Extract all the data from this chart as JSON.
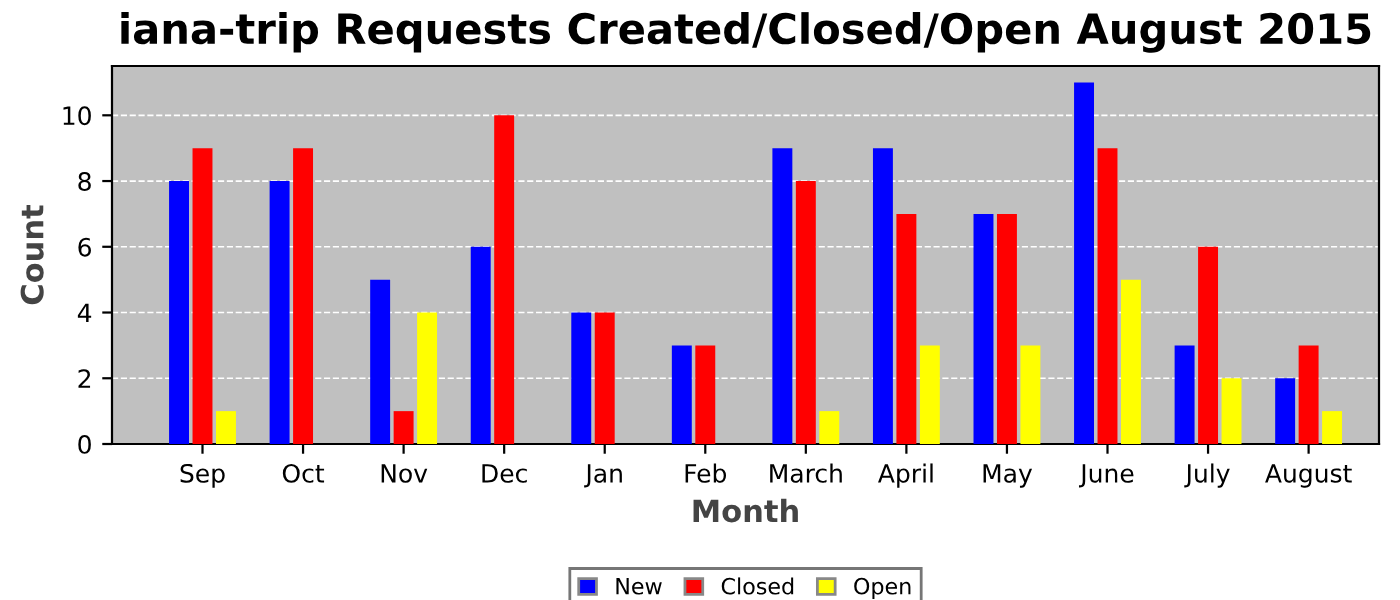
{
  "chart_data": {
    "type": "bar",
    "title": "iana-trip Requests Created/Closed/Open August 2015",
    "xlabel": "Month",
    "ylabel": "Count",
    "categories": [
      "Sep",
      "Oct",
      "Nov",
      "Dec",
      "Jan",
      "Feb",
      "March",
      "April",
      "May",
      "June",
      "July",
      "August"
    ],
    "series": [
      {
        "name": "New",
        "color": "#0000ff",
        "values": [
          8,
          8,
          5,
          6,
          4,
          3,
          9,
          9,
          7,
          11,
          3,
          2
        ]
      },
      {
        "name": "Closed",
        "color": "#ff0000",
        "values": [
          9,
          9,
          1,
          10,
          4,
          3,
          8,
          7,
          7,
          9,
          6,
          3
        ]
      },
      {
        "name": "Open",
        "color": "#ffff00",
        "values": [
          1,
          0,
          4,
          0,
          0,
          0,
          1,
          3,
          3,
          5,
          2,
          1
        ]
      }
    ],
    "ylim": [
      0,
      11.5
    ],
    "yticks": [
      0,
      2,
      4,
      6,
      8,
      10
    ],
    "grid": "y",
    "legend": "bottom"
  }
}
